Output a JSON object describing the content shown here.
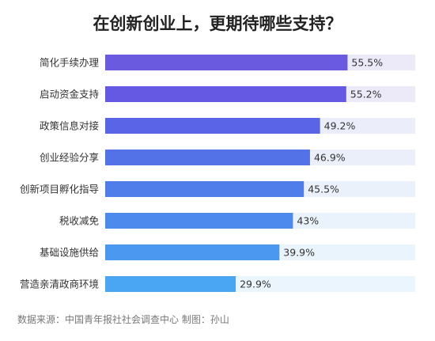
{
  "chart_data": {
    "type": "bar",
    "orientation": "horizontal",
    "title": "在创新创业上，更期待哪些支持？",
    "categories": [
      "简化手续办理",
      "启动资金支持",
      "政策信息对接",
      "创业经验分享",
      "创新项目孵化指导",
      "税收减免",
      "基础设施供给",
      "营造亲清政商环境"
    ],
    "values": [
      55.5,
      55.2,
      49.2,
      46.9,
      45.5,
      43,
      39.9,
      29.9
    ],
    "value_labels": [
      "55.5%",
      "55.2%",
      "49.2%",
      "46.9%",
      "45.5%",
      "43%",
      "39.9%",
      "29.9%"
    ],
    "xlim": [
      0,
      71
    ],
    "grid": false,
    "bar_colors": [
      "#6a5ae0",
      "#6558e2",
      "#5a64e6",
      "#5472e8",
      "#4f7eea",
      "#4c8aee",
      "#4b98f0",
      "#4aa6f2"
    ],
    "track_colors": [
      "#eceaf9",
      "#eceaf9",
      "#ebedfa",
      "#ebeffa",
      "#ebf1fb",
      "#eaf2fb",
      "#eaf4fc",
      "#eaf5fd"
    ],
    "source": "数据来源：中国青年报社社会调查中心  制图：孙山"
  }
}
